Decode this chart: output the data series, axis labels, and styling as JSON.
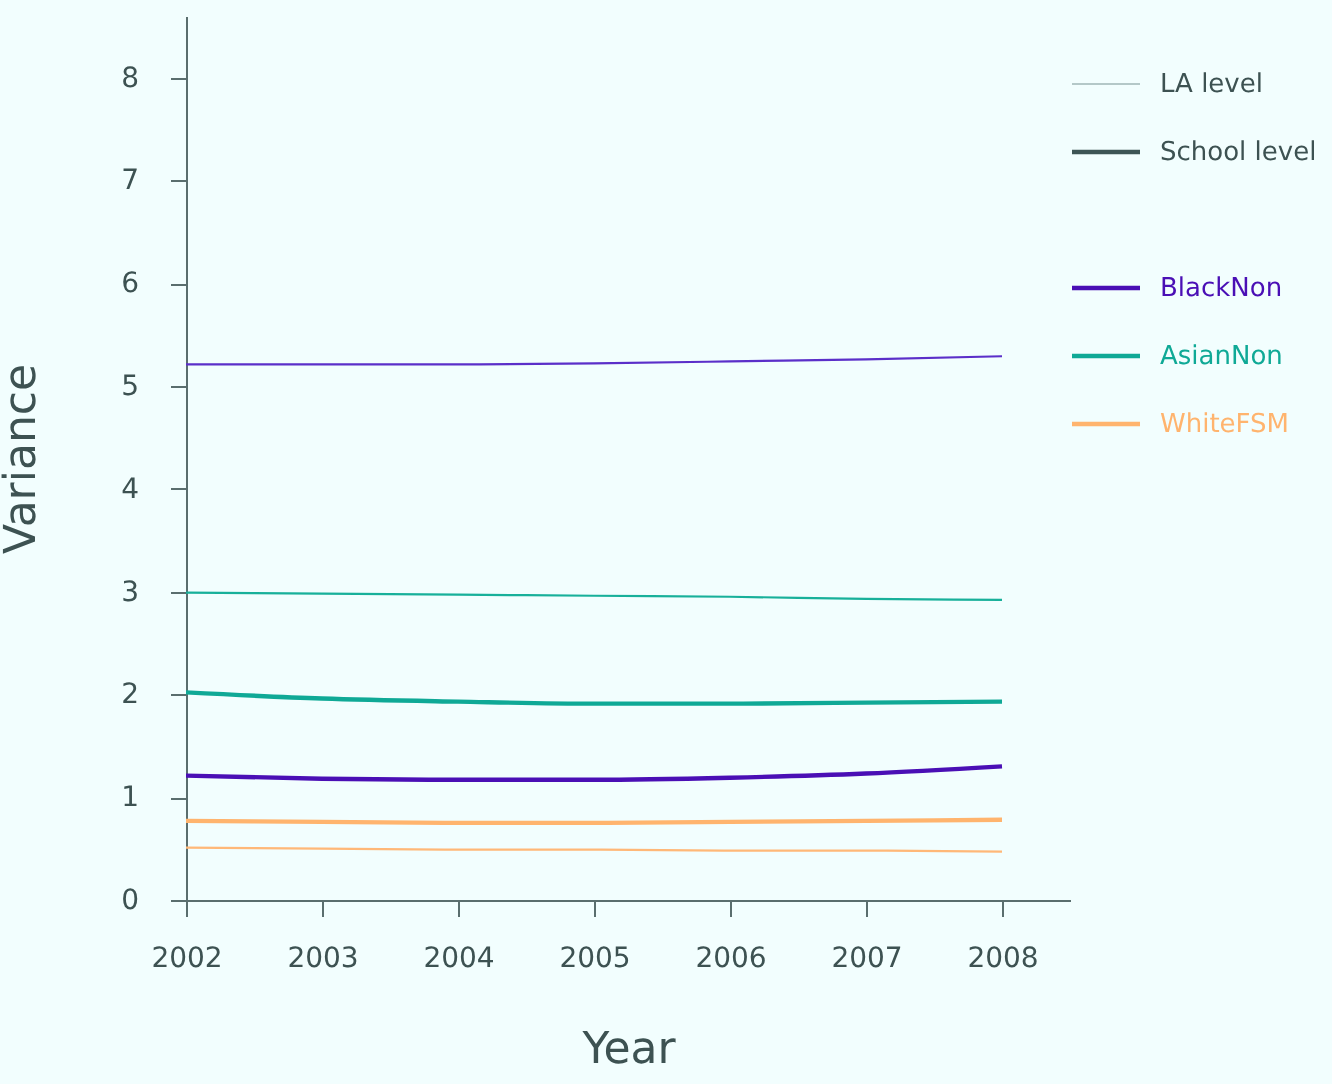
{
  "chart_data": {
    "type": "line",
    "xlabel": "Year",
    "ylabel": "Variance",
    "x": [
      2002,
      2003,
      2004,
      2005,
      2006,
      2007,
      2008
    ],
    "series": [
      {
        "color": "#5b2fc9",
        "values": [
          5.21,
          5.21,
          5.21,
          5.22,
          5.24,
          5.26,
          5.29
        ]
      },
      {
        "color": "#18b09a",
        "values": [
          2.99,
          2.98,
          2.97,
          2.96,
          2.95,
          2.93,
          2.92
        ]
      },
      {
        "color": "#ffb878",
        "values": [
          0.51,
          0.5,
          0.49,
          0.49,
          0.48,
          0.48,
          0.47
        ]
      },
      {
        "name": "BlackNon",
        "color": "#4a0fb5",
        "values": [
          1.21,
          1.18,
          1.17,
          1.17,
          1.19,
          1.23,
          1.3
        ]
      },
      {
        "name": "AsianNon",
        "color": "#0fa996",
        "values": [
          2.02,
          1.96,
          1.93,
          1.91,
          1.91,
          1.92,
          1.93
        ]
      },
      {
        "name": "WhiteFSM",
        "color": "#ffb46e",
        "values": [
          0.77,
          0.76,
          0.75,
          0.75,
          0.76,
          0.77,
          0.78
        ]
      }
    ],
    "annotations": [
      "LA level",
      "School level"
    ],
    "xlim": [
      2002,
      2008.5
    ],
    "xticks": [
      2002,
      2003,
      2004,
      2005,
      2006,
      2007,
      2008
    ],
    "ylim": [
      0,
      8.6
    ],
    "yticks": [
      0,
      1,
      2,
      3,
      4,
      5,
      6,
      7,
      8
    ],
    "grid": false,
    "legend": "top right",
    "marker": "none",
    "line_style": "solid"
  }
}
